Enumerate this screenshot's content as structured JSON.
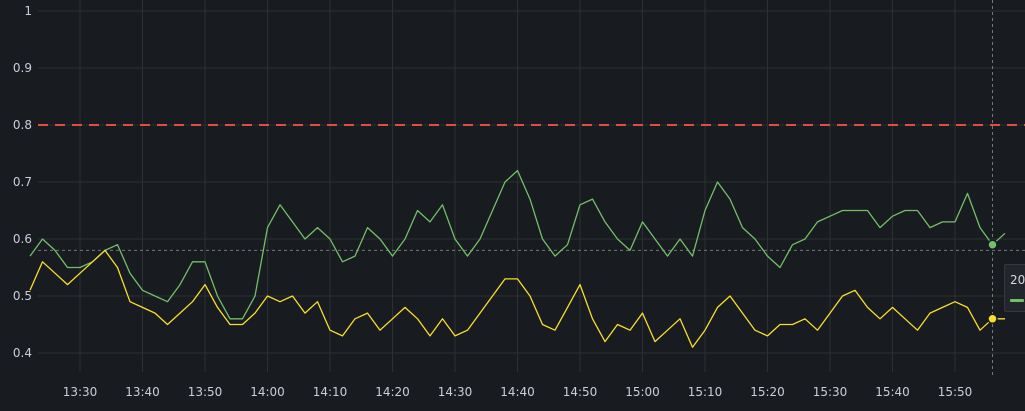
{
  "chart_data": {
    "type": "line",
    "title": "",
    "xlabel": "",
    "ylabel": "",
    "x_range": [
      "13:22",
      "15:58"
    ],
    "ylim": [
      0.35,
      1.0
    ],
    "y_ticks": [
      "0.4",
      "0.5",
      "0.6",
      "0.7",
      "0.8",
      "0.9",
      "1"
    ],
    "y_tick_values": [
      0.4,
      0.5,
      0.6,
      0.7,
      0.8,
      0.9,
      1.0
    ],
    "x_ticks": [
      "13:30",
      "13:40",
      "13:50",
      "14:00",
      "14:10",
      "14:20",
      "14:30",
      "14:40",
      "14:50",
      "15:00",
      "15:10",
      "15:20",
      "15:30",
      "15:40",
      "15:50"
    ],
    "grid": true,
    "threshold": {
      "value": 0.8,
      "color": "#e24d42",
      "style": "dashed"
    },
    "crosshair": {
      "time": "15:56",
      "value": 0.58
    },
    "series": [
      {
        "color": "#73bf69",
        "x": [
          "13:22",
          "13:24",
          "13:26",
          "13:28",
          "13:30",
          "13:32",
          "13:34",
          "13:36",
          "13:38",
          "13:40",
          "13:42",
          "13:44",
          "13:46",
          "13:48",
          "13:50",
          "13:52",
          "13:54",
          "13:56",
          "13:58",
          "14:00",
          "14:02",
          "14:04",
          "14:06",
          "14:08",
          "14:10",
          "14:12",
          "14:14",
          "14:16",
          "14:18",
          "14:20",
          "14:22",
          "14:24",
          "14:26",
          "14:28",
          "14:30",
          "14:32",
          "14:34",
          "14:36",
          "14:38",
          "14:40",
          "14:42",
          "14:44",
          "14:46",
          "14:48",
          "14:50",
          "14:52",
          "14:54",
          "14:56",
          "14:58",
          "15:00",
          "15:02",
          "15:04",
          "15:06",
          "15:08",
          "15:10",
          "15:12",
          "15:14",
          "15:16",
          "15:18",
          "15:20",
          "15:22",
          "15:24",
          "15:26",
          "15:28",
          "15:30",
          "15:32",
          "15:34",
          "15:36",
          "15:38",
          "15:40",
          "15:42",
          "15:44",
          "15:46",
          "15:48",
          "15:50",
          "15:52",
          "15:54",
          "15:56",
          "15:58"
        ],
        "values": [
          0.57,
          0.6,
          0.58,
          0.55,
          0.55,
          0.56,
          0.58,
          0.59,
          0.54,
          0.51,
          0.5,
          0.49,
          0.52,
          0.56,
          0.56,
          0.5,
          0.46,
          0.46,
          0.5,
          0.62,
          0.66,
          0.63,
          0.6,
          0.62,
          0.6,
          0.56,
          0.57,
          0.62,
          0.6,
          0.57,
          0.6,
          0.65,
          0.63,
          0.66,
          0.6,
          0.57,
          0.6,
          0.65,
          0.7,
          0.72,
          0.67,
          0.6,
          0.57,
          0.59,
          0.66,
          0.67,
          0.63,
          0.6,
          0.58,
          0.63,
          0.6,
          0.57,
          0.6,
          0.57,
          0.65,
          0.7,
          0.67,
          0.62,
          0.6,
          0.57,
          0.55,
          0.59,
          0.6,
          0.63,
          0.64,
          0.65,
          0.65,
          0.65,
          0.62,
          0.64,
          0.65,
          0.65,
          0.62,
          0.63,
          0.63,
          0.68,
          0.62,
          0.59,
          0.61
        ]
      },
      {
        "color": "#fade2a",
        "x": [
          "13:22",
          "13:24",
          "13:26",
          "13:28",
          "13:30",
          "13:32",
          "13:34",
          "13:36",
          "13:38",
          "13:40",
          "13:42",
          "13:44",
          "13:46",
          "13:48",
          "13:50",
          "13:52",
          "13:54",
          "13:56",
          "13:58",
          "14:00",
          "14:02",
          "14:04",
          "14:06",
          "14:08",
          "14:10",
          "14:12",
          "14:14",
          "14:16",
          "14:18",
          "14:20",
          "14:22",
          "14:24",
          "14:26",
          "14:28",
          "14:30",
          "14:32",
          "14:34",
          "14:36",
          "14:38",
          "14:40",
          "14:42",
          "14:44",
          "14:46",
          "14:48",
          "14:50",
          "14:52",
          "14:54",
          "14:56",
          "14:58",
          "15:00",
          "15:02",
          "15:04",
          "15:06",
          "15:08",
          "15:10",
          "15:12",
          "15:14",
          "15:16",
          "15:18",
          "15:20",
          "15:22",
          "15:24",
          "15:26",
          "15:28",
          "15:30",
          "15:32",
          "15:34",
          "15:36",
          "15:38",
          "15:40",
          "15:42",
          "15:44",
          "15:46",
          "15:48",
          "15:50",
          "15:52",
          "15:54",
          "15:56",
          "15:58"
        ],
        "values": [
          0.51,
          0.56,
          0.54,
          0.52,
          0.54,
          0.56,
          0.58,
          0.55,
          0.49,
          0.48,
          0.47,
          0.45,
          0.47,
          0.49,
          0.52,
          0.48,
          0.45,
          0.45,
          0.47,
          0.5,
          0.49,
          0.5,
          0.47,
          0.49,
          0.44,
          0.43,
          0.46,
          0.47,
          0.44,
          0.46,
          0.48,
          0.46,
          0.43,
          0.46,
          0.43,
          0.44,
          0.47,
          0.5,
          0.53,
          0.53,
          0.5,
          0.45,
          0.44,
          0.48,
          0.52,
          0.46,
          0.42,
          0.45,
          0.44,
          0.47,
          0.42,
          0.44,
          0.46,
          0.41,
          0.44,
          0.48,
          0.5,
          0.47,
          0.44,
          0.43,
          0.45,
          0.45,
          0.46,
          0.44,
          0.47,
          0.5,
          0.51,
          0.48,
          0.46,
          0.48,
          0.46,
          0.44,
          0.47,
          0.48,
          0.49,
          0.48,
          0.44,
          0.46,
          0.46
        ]
      }
    ]
  },
  "tooltip": {
    "label": "20"
  }
}
